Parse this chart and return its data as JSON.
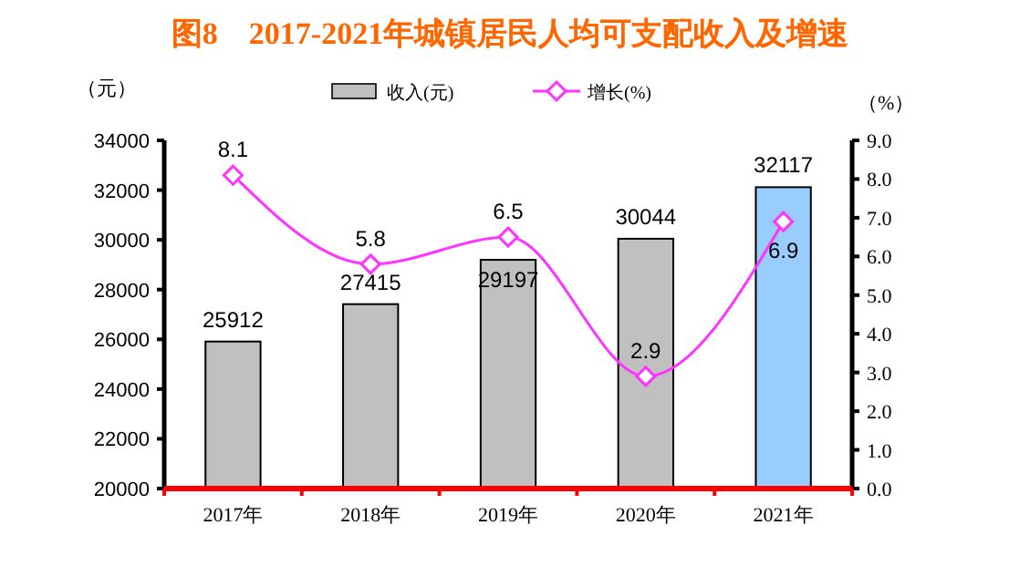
{
  "chart_data": {
    "type": "bar",
    "title": "图8　2017-2021年城镇居民人均可支配收入及增速",
    "ylabel": "（元）",
    "y2label": "（%）",
    "categories": [
      "2017年",
      "2018年",
      "2019年",
      "2020年",
      "2021年"
    ],
    "series": [
      {
        "name": "收入(元)",
        "color": "#c0c0c0",
        "colors": [
          "#c0c0c0",
          "#c0c0c0",
          "#c0c0c0",
          "#c0c0c0",
          "#99ccff"
        ],
        "values": [
          25912,
          27415,
          29197,
          30044,
          32117
        ]
      },
      {
        "name": "增长(%)",
        "type": "line",
        "axis": "y2",
        "color": "#ff33ff",
        "marker": "diamond",
        "values": [
          8.1,
          5.8,
          6.5,
          2.9,
          6.9
        ]
      }
    ],
    "ylim": [
      20000,
      34000
    ],
    "yticks": [
      20000,
      22000,
      24000,
      26000,
      28000,
      30000,
      32000,
      34000
    ],
    "y2lim": [
      0,
      9
    ],
    "y2ticks": [
      {
        "value": 0,
        "label": "0.0"
      },
      {
        "value": 1,
        "label": "1.0"
      },
      {
        "value": 2,
        "label": "2.0"
      },
      {
        "value": 3,
        "label": "3.0"
      },
      {
        "value": 4,
        "label": "4.0"
      },
      {
        "value": 5,
        "label": "5.0"
      },
      {
        "value": 6,
        "label": "6.0"
      },
      {
        "value": 7,
        "label": "7.0"
      },
      {
        "value": 8,
        "label": "8.0"
      },
      {
        "value": 9,
        "label": "9.0"
      }
    ],
    "data_labels": true,
    "legend": "top",
    "grid": false
  }
}
